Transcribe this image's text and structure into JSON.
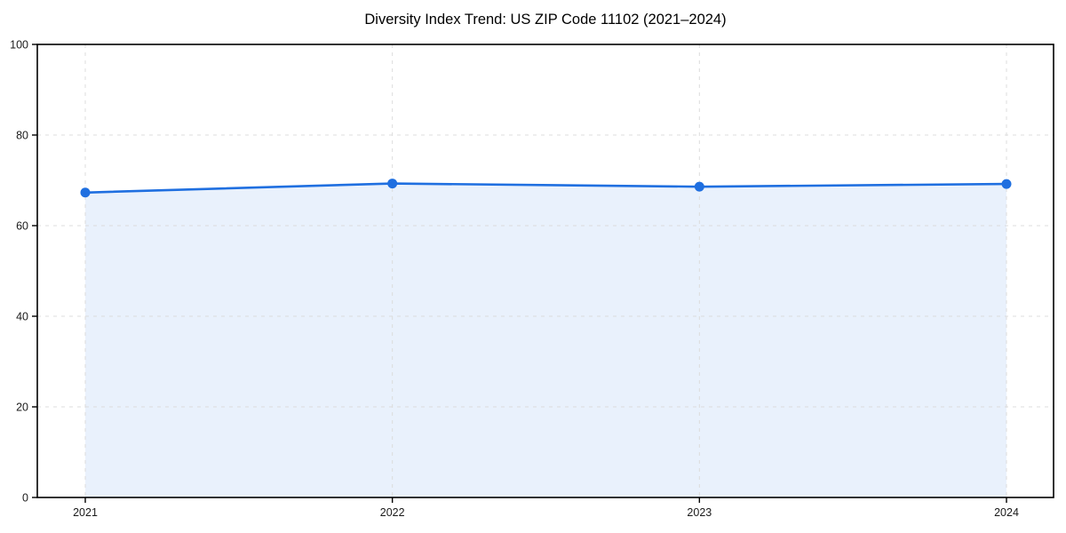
{
  "chart_data": {
    "type": "area",
    "title": "Diversity Index Trend: US ZIP Code 11102 (2021–2024)",
    "x": [
      "2021",
      "2022",
      "2023",
      "2024"
    ],
    "values": [
      67.3,
      69.3,
      68.6,
      69.2
    ],
    "xlabel": "",
    "ylabel": "",
    "ylim": [
      0,
      100
    ],
    "yticks": [
      0,
      20,
      40,
      60,
      80,
      100
    ],
    "grid": "dashed",
    "legend": "none",
    "marker": "circle",
    "colors": {
      "line": "#1f6fe0",
      "fill": "#e9f1fc",
      "grid": "#dcdcdc",
      "axis": "#000000",
      "tick_label": "#1a1a1a",
      "title": "#000000",
      "background": "#ffffff"
    }
  }
}
